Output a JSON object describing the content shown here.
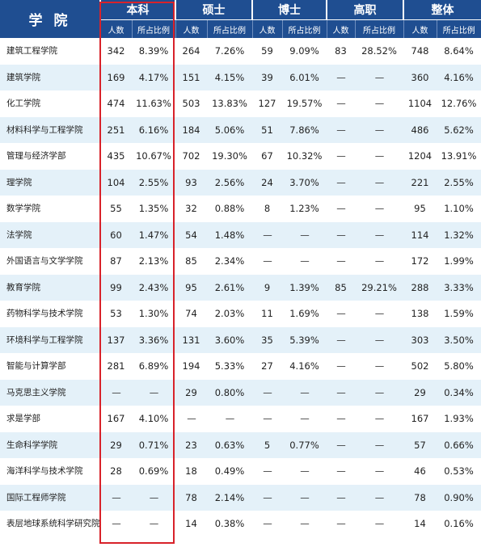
{
  "header": {
    "college": "学 院",
    "groups": [
      "本科",
      "硕士",
      "博士",
      "高职",
      "整体"
    ],
    "sub_count": "人数",
    "sub_ratio": "所占比例"
  },
  "rows": [
    {
      "name": "建筑工程学院",
      "cells": [
        "342",
        "8.39%",
        "264",
        "7.26%",
        "59",
        "9.09%",
        "83",
        "28.52%",
        "748",
        "8.64%"
      ]
    },
    {
      "name": "建筑学院",
      "cells": [
        "169",
        "4.17%",
        "151",
        "4.15%",
        "39",
        "6.01%",
        "—",
        "—",
        "360",
        "4.16%"
      ]
    },
    {
      "name": "化工学院",
      "cells": [
        "474",
        "11.63%",
        "503",
        "13.83%",
        "127",
        "19.57%",
        "—",
        "—",
        "1104",
        "12.76%"
      ]
    },
    {
      "name": "材料科学与工程学院",
      "cells": [
        "251",
        "6.16%",
        "184",
        "5.06%",
        "51",
        "7.86%",
        "—",
        "—",
        "486",
        "5.62%"
      ]
    },
    {
      "name": "管理与经济学部",
      "cells": [
        "435",
        "10.67%",
        "702",
        "19.30%",
        "67",
        "10.32%",
        "—",
        "—",
        "1204",
        "13.91%"
      ]
    },
    {
      "name": "理学院",
      "cells": [
        "104",
        "2.55%",
        "93",
        "2.56%",
        "24",
        "3.70%",
        "—",
        "—",
        "221",
        "2.55%"
      ]
    },
    {
      "name": "数学学院",
      "cells": [
        "55",
        "1.35%",
        "32",
        "0.88%",
        "8",
        "1.23%",
        "—",
        "—",
        "95",
        "1.10%"
      ]
    },
    {
      "name": "法学院",
      "cells": [
        "60",
        "1.47%",
        "54",
        "1.48%",
        "—",
        "—",
        "—",
        "—",
        "114",
        "1.32%"
      ]
    },
    {
      "name": "外国语言与文学学院",
      "cells": [
        "87",
        "2.13%",
        "85",
        "2.34%",
        "—",
        "—",
        "—",
        "—",
        "172",
        "1.99%"
      ]
    },
    {
      "name": "教育学院",
      "cells": [
        "99",
        "2.43%",
        "95",
        "2.61%",
        "9",
        "1.39%",
        "85",
        "29.21%",
        "288",
        "3.33%"
      ]
    },
    {
      "name": "药物科学与技术学院",
      "cells": [
        "53",
        "1.30%",
        "74",
        "2.03%",
        "11",
        "1.69%",
        "—",
        "—",
        "138",
        "1.59%"
      ]
    },
    {
      "name": "环境科学与工程学院",
      "cells": [
        "137",
        "3.36%",
        "131",
        "3.60%",
        "35",
        "5.39%",
        "—",
        "—",
        "303",
        "3.50%"
      ]
    },
    {
      "name": "智能与计算学部",
      "cells": [
        "281",
        "6.89%",
        "194",
        "5.33%",
        "27",
        "4.16%",
        "—",
        "—",
        "502",
        "5.80%"
      ]
    },
    {
      "name": "马克思主义学院",
      "cells": [
        "—",
        "—",
        "29",
        "0.80%",
        "—",
        "—",
        "—",
        "—",
        "29",
        "0.34%"
      ]
    },
    {
      "name": "求是学部",
      "cells": [
        "167",
        "4.10%",
        "—",
        "—",
        "—",
        "—",
        "—",
        "—",
        "167",
        "1.93%"
      ]
    },
    {
      "name": "生命科学学院",
      "cells": [
        "29",
        "0.71%",
        "23",
        "0.63%",
        "5",
        "0.77%",
        "—",
        "—",
        "57",
        "0.66%"
      ]
    },
    {
      "name": "海洋科学与技术学院",
      "cells": [
        "28",
        "0.69%",
        "18",
        "0.49%",
        "—",
        "—",
        "—",
        "—",
        "46",
        "0.53%"
      ]
    },
    {
      "name": "国际工程师学院",
      "cells": [
        "—",
        "—",
        "78",
        "2.14%",
        "—",
        "—",
        "—",
        "—",
        "78",
        "0.90%"
      ]
    },
    {
      "name": "表层地球系统科学研究院",
      "cells": [
        "—",
        "—",
        "14",
        "0.38%",
        "—",
        "—",
        "—",
        "—",
        "14",
        "0.16%"
      ]
    }
  ],
  "highlight_color": "#d8222a",
  "header_color": "#1f4e91",
  "stripe_color": "#e4f1f9"
}
